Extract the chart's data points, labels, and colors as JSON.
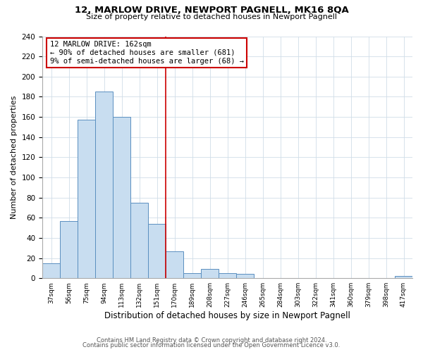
{
  "title": "12, MARLOW DRIVE, NEWPORT PAGNELL, MK16 8QA",
  "subtitle": "Size of property relative to detached houses in Newport Pagnell",
  "xlabel": "Distribution of detached houses by size in Newport Pagnell",
  "ylabel": "Number of detached properties",
  "bin_labels": [
    "37sqm",
    "56sqm",
    "75sqm",
    "94sqm",
    "113sqm",
    "132sqm",
    "151sqm",
    "170sqm",
    "189sqm",
    "208sqm",
    "227sqm",
    "246sqm",
    "265sqm",
    "284sqm",
    "303sqm",
    "322sqm",
    "341sqm",
    "360sqm",
    "379sqm",
    "398sqm",
    "417sqm"
  ],
  "bin_counts": [
    15,
    57,
    157,
    185,
    160,
    75,
    54,
    27,
    5,
    9,
    5,
    4,
    0,
    0,
    0,
    0,
    0,
    0,
    0,
    0,
    2
  ],
  "bar_color": "#c8ddf0",
  "bar_edge_color": "#5a8fc0",
  "grid_color": "#d0dde8",
  "vline_x_index": 6.5,
  "annotation_title": "12 MARLOW DRIVE: 162sqm",
  "annotation_line1": "← 90% of detached houses are smaller (681)",
  "annotation_line2": "9% of semi-detached houses are larger (68) →",
  "annotation_box_color": "#ffffff",
  "annotation_box_edge_color": "#cc0000",
  "vline_color": "#cc0000",
  "ylim": [
    0,
    240
  ],
  "yticks": [
    0,
    20,
    40,
    60,
    80,
    100,
    120,
    140,
    160,
    180,
    200,
    220,
    240
  ],
  "footer_line1": "Contains HM Land Registry data © Crown copyright and database right 2024.",
  "footer_line2": "Contains public sector information licensed under the Open Government Licence v3.0.",
  "background_color": "#ffffff"
}
